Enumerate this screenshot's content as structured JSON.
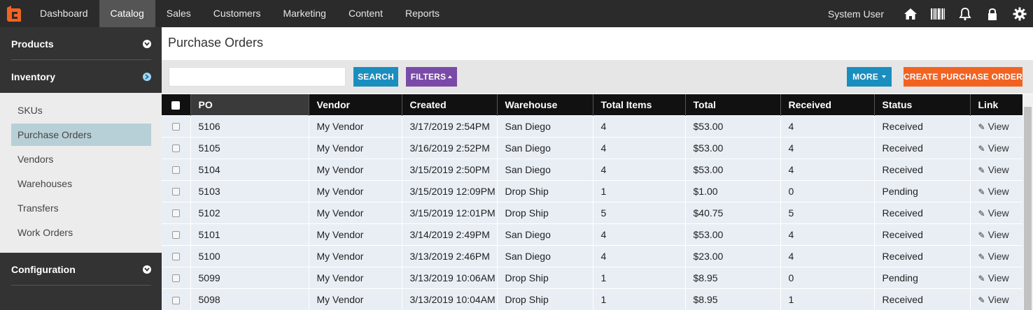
{
  "nav": {
    "items": [
      "Dashboard",
      "Catalog",
      "Sales",
      "Customers",
      "Marketing",
      "Content",
      "Reports"
    ],
    "active_index": 1,
    "user": "System User",
    "icons": [
      "home-icon",
      "barcode-icon",
      "bell-icon",
      "lock-icon",
      "gear-icon"
    ]
  },
  "sidebar": {
    "products": "Products",
    "inventory": "Inventory",
    "sub_items": [
      "SKUs",
      "Purchase Orders",
      "Vendors",
      "Warehouses",
      "Transfers",
      "Work Orders"
    ],
    "active_sub_index": 1,
    "configuration": "Configuration"
  },
  "page": {
    "title": "Purchase Orders"
  },
  "toolbar": {
    "search_value": "",
    "search_label": "SEARCH",
    "filters_label": "FILTERS",
    "more_label": "MORE",
    "create_label": "CREATE PURCHASE ORDER"
  },
  "colors": {
    "search_button": "#1a8ebf",
    "filters_button": "#7a4aa8",
    "more_button": "#1a8ebf",
    "create_button": "#f26322",
    "active_sidebar_item": "#b7d0d7"
  },
  "table": {
    "columns": [
      "PO",
      "Vendor",
      "Created",
      "Warehouse",
      "Total Items",
      "Total",
      "Received",
      "Status",
      "Link"
    ],
    "rows": [
      [
        "5106",
        "My Vendor",
        "3/17/2019 2:54PM",
        "San Diego",
        "4",
        "$53.00",
        "4",
        "Received",
        "View"
      ],
      [
        "5105",
        "My Vendor",
        "3/16/2019 2:52PM",
        "San Diego",
        "4",
        "$53.00",
        "4",
        "Received",
        "View"
      ],
      [
        "5104",
        "My Vendor",
        "3/15/2019 2:50PM",
        "San Diego",
        "4",
        "$53.00",
        "4",
        "Received",
        "View"
      ],
      [
        "5103",
        "My Vendor",
        "3/15/2019 12:09PM",
        "Drop Ship",
        "1",
        "$1.00",
        "0",
        "Pending",
        "View"
      ],
      [
        "5102",
        "My Vendor",
        "3/15/2019 12:01PM",
        "Drop Ship",
        "5",
        "$40.75",
        "5",
        "Received",
        "View"
      ],
      [
        "5101",
        "My Vendor",
        "3/14/2019 2:49PM",
        "San Diego",
        "4",
        "$53.00",
        "4",
        "Received",
        "View"
      ],
      [
        "5100",
        "My Vendor",
        "3/13/2019 2:46PM",
        "San Diego",
        "4",
        "$23.00",
        "4",
        "Received",
        "View"
      ],
      [
        "5099",
        "My Vendor",
        "3/13/2019 10:06AM",
        "Drop Ship",
        "1",
        "$8.95",
        "0",
        "Pending",
        "View"
      ],
      [
        "5098",
        "My Vendor",
        "3/13/2019 10:04AM",
        "Drop Ship",
        "1",
        "$8.95",
        "1",
        "Received",
        "View"
      ]
    ]
  }
}
